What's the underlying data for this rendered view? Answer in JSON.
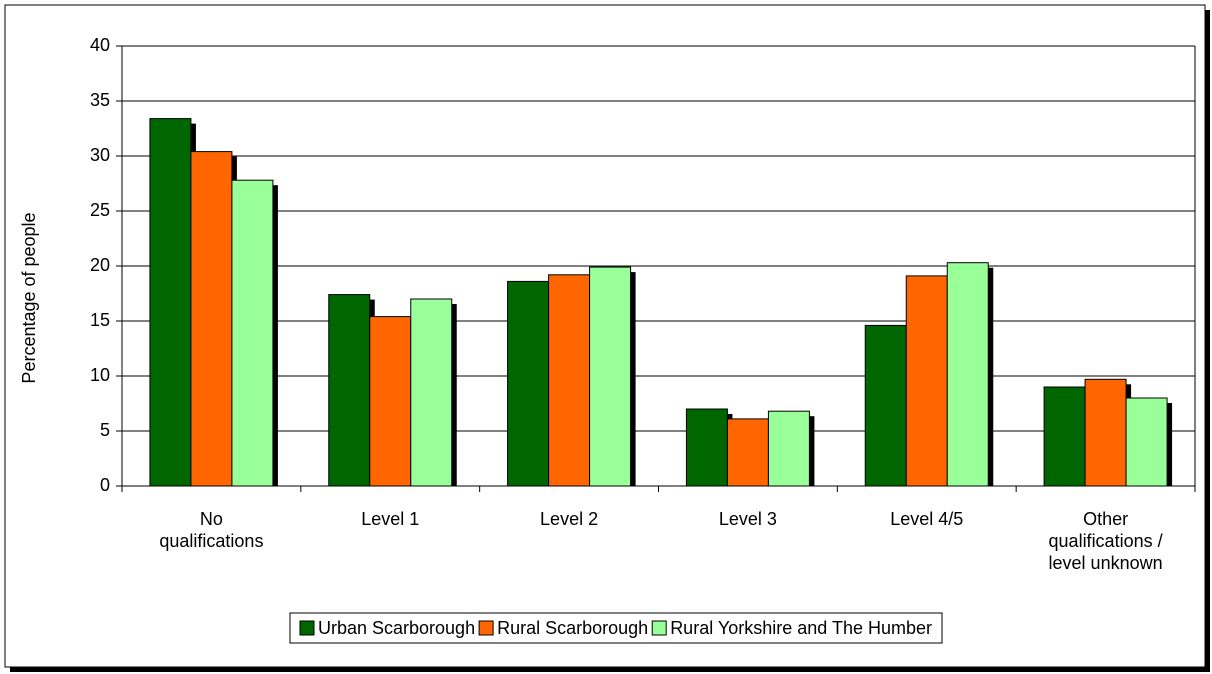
{
  "chart_data": {
    "type": "bar",
    "ylabel": "Percentage of people",
    "categories": [
      "No qualifications",
      "Level 1",
      "Level 2",
      "Level 3",
      "Level 4/5",
      "Other qualifications / level unknown"
    ],
    "series": [
      {
        "name": "Urban Scarborough",
        "color": "#006600",
        "values": [
          33.4,
          17.4,
          18.6,
          7.0,
          14.6,
          9.0
        ]
      },
      {
        "name": "Rural Scarborough",
        "color": "#ff6600",
        "values": [
          30.4,
          15.4,
          19.2,
          6.1,
          19.1,
          9.7
        ]
      },
      {
        "name": "Rural Yorkshire and The Humber",
        "color": "#99ff99",
        "values": [
          27.8,
          17.0,
          19.9,
          6.8,
          20.3,
          8.0
        ]
      }
    ],
    "ylim": [
      0,
      40
    ],
    "yticks": [
      0,
      5,
      10,
      15,
      20,
      25,
      30,
      35,
      40
    ],
    "grid": true,
    "legend": "bottom"
  }
}
